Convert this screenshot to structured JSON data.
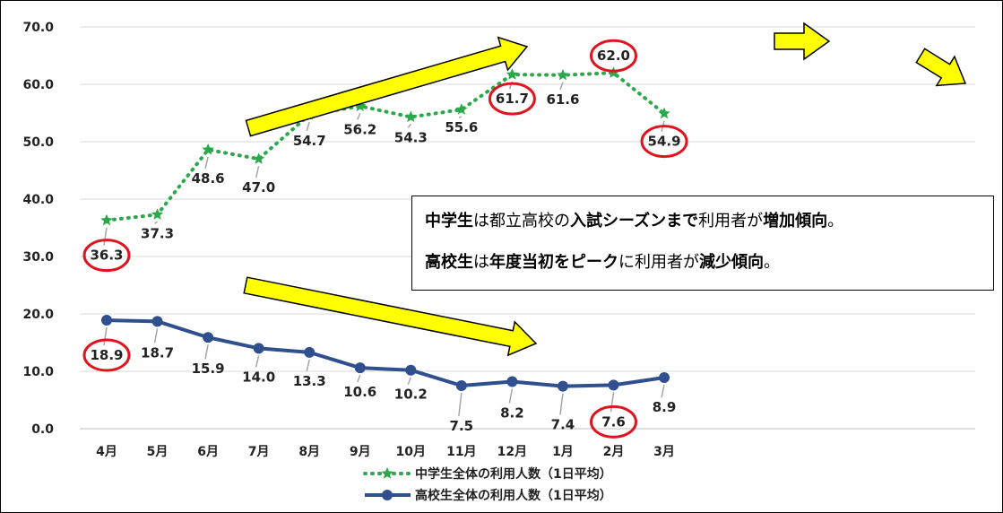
{
  "chart_data": {
    "type": "line",
    "categories": [
      "4月",
      "5月",
      "6月",
      "7月",
      "8月",
      "9月",
      "10月",
      "11月",
      "12月",
      "1月",
      "2月",
      "3月"
    ],
    "ylim": [
      0,
      70
    ],
    "yticks": [
      "0.0",
      "10.0",
      "20.0",
      "30.0",
      "40.0",
      "50.0",
      "60.0",
      "70.0"
    ],
    "grid": true,
    "legend_position": "bottom",
    "series": [
      {
        "name": "中学生全体の利用人数（1日平均）",
        "values": [
          36.3,
          37.3,
          48.6,
          47.0,
          54.7,
          56.2,
          54.3,
          55.6,
          61.7,
          61.6,
          62.0,
          54.9
        ],
        "labels": [
          "36.3",
          "37.3",
          "48.6",
          "47.0",
          "54.7",
          "56.2",
          "54.3",
          "55.6",
          "61.7",
          "61.6",
          "62.0",
          "54.9"
        ],
        "color": "#2aa84a",
        "style": "dotted",
        "marker": "star",
        "circled_indices": [
          0,
          8,
          10,
          11
        ]
      },
      {
        "name": "高校生全体の利用人数（1日平均）",
        "values": [
          18.9,
          18.7,
          15.9,
          14.0,
          13.3,
          10.6,
          10.2,
          7.5,
          8.2,
          7.4,
          7.6,
          8.9
        ],
        "labels": [
          "18.9",
          "18.7",
          "15.9",
          "14.0",
          "13.3",
          "10.6",
          "10.2",
          "7.5",
          "8.2",
          "7.4",
          "7.6",
          "8.9"
        ],
        "color": "#2f4f8f",
        "style": "solid",
        "marker": "circle",
        "circled_indices": [
          0,
          10
        ]
      }
    ]
  },
  "note": {
    "line1": [
      {
        "text": "中学生",
        "bold": true
      },
      {
        "text": "は都立高校の",
        "bold": false
      },
      {
        "text": "入試シーズンまで",
        "bold": true
      },
      {
        "text": "利用者が",
        "bold": false
      },
      {
        "text": "増加傾向",
        "bold": true
      },
      {
        "text": "。",
        "bold": false
      }
    ],
    "line2": [
      {
        "text": "高校生",
        "bold": true
      },
      {
        "text": "は",
        "bold": false
      },
      {
        "text": "年度当初をピーク",
        "bold": true
      },
      {
        "text": "に利用者が",
        "bold": false
      },
      {
        "text": "減少傾向",
        "bold": true
      },
      {
        "text": "。",
        "bold": false
      }
    ]
  },
  "colors": {
    "arrow_fill": "#ffff00",
    "arrow_stroke": "#000000",
    "circle": "#e0141e",
    "gridline": "#d9d9d9"
  }
}
